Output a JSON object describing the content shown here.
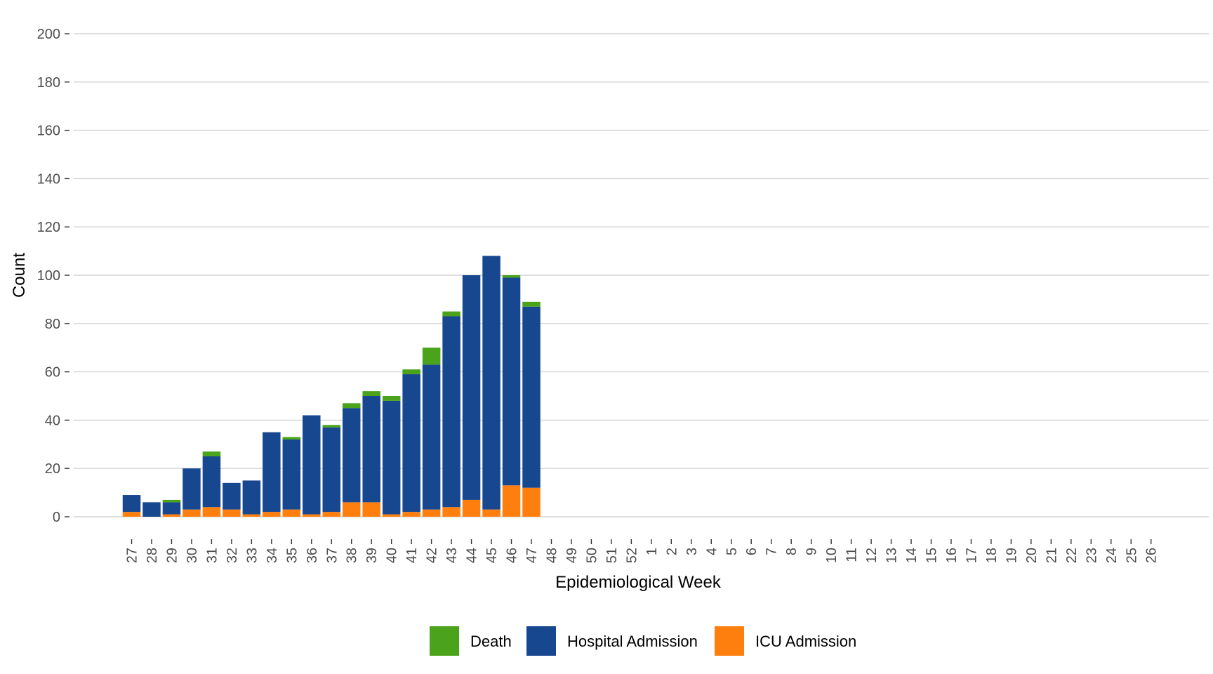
{
  "chart_data": {
    "type": "bar",
    "stacked": true,
    "xlabel": "Epidemiological Week",
    "ylabel": "Count",
    "ylim": [
      0,
      200
    ],
    "y_ticks": [
      0,
      20,
      40,
      60,
      80,
      100,
      120,
      140,
      160,
      180,
      200
    ],
    "grid": "horizontal",
    "legend_position": "bottom",
    "categories": [
      "27",
      "28",
      "29",
      "30",
      "31",
      "32",
      "33",
      "34",
      "35",
      "36",
      "37",
      "38",
      "39",
      "40",
      "41",
      "42",
      "43",
      "44",
      "45",
      "46",
      "47",
      "48",
      "49",
      "50",
      "51",
      "52",
      "1",
      "2",
      "3",
      "4",
      "5",
      "6",
      "7",
      "8",
      "9",
      "10",
      "11",
      "12",
      "13",
      "14",
      "15",
      "16",
      "17",
      "18",
      "19",
      "20",
      "21",
      "22",
      "23",
      "24",
      "25",
      "26"
    ],
    "series": [
      {
        "name": "ICU Admission",
        "color": "#ff7f0e",
        "values": [
          2,
          0,
          1,
          3,
          4,
          3,
          1,
          2,
          3,
          1,
          2,
          6,
          6,
          1,
          2,
          3,
          4,
          7,
          3,
          13,
          12,
          0,
          0,
          0,
          0,
          0,
          0,
          0,
          0,
          0,
          0,
          0,
          0,
          0,
          0,
          0,
          0,
          0,
          0,
          0,
          0,
          0,
          0,
          0,
          0,
          0,
          0,
          0,
          0,
          0,
          0,
          0
        ]
      },
      {
        "name": "Hospital Admission",
        "color": "#17478e",
        "values": [
          7,
          6,
          5,
          17,
          21,
          11,
          14,
          33,
          29,
          41,
          35,
          39,
          44,
          47,
          57,
          60,
          79,
          93,
          105,
          86,
          75,
          0,
          0,
          0,
          0,
          0,
          0,
          0,
          0,
          0,
          0,
          0,
          0,
          0,
          0,
          0,
          0,
          0,
          0,
          0,
          0,
          0,
          0,
          0,
          0,
          0,
          0,
          0,
          0,
          0,
          0,
          0
        ]
      },
      {
        "name": "Death",
        "color": "#4aa31a",
        "values": [
          0,
          0,
          1,
          0,
          2,
          0,
          0,
          0,
          1,
          0,
          1,
          2,
          2,
          2,
          2,
          7,
          2,
          0,
          0,
          1,
          2,
          0,
          0,
          0,
          0,
          0,
          0,
          0,
          0,
          0,
          0,
          0,
          0,
          0,
          0,
          0,
          0,
          0,
          0,
          0,
          0,
          0,
          0,
          0,
          0,
          0,
          0,
          0,
          0,
          0,
          0,
          0
        ]
      }
    ],
    "legend": [
      {
        "label": "Death",
        "color": "#4aa31a"
      },
      {
        "label": "Hospital Admission",
        "color": "#17478e"
      },
      {
        "label": "ICU Admission",
        "color": "#ff7f0e"
      }
    ]
  }
}
